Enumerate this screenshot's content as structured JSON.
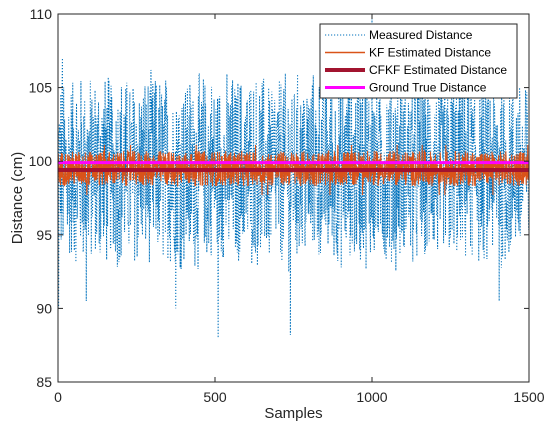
{
  "chart_data": {
    "type": "line",
    "xlabel": "Samples",
    "ylabel": "Distance (cm)",
    "xlim": [
      0,
      1500
    ],
    "ylim": [
      85,
      110
    ],
    "xticks": [
      0,
      500,
      1000,
      1500
    ],
    "yticks": [
      85,
      90,
      95,
      100,
      105,
      110
    ],
    "grid": false,
    "legend_position": "top-right",
    "n_samples": 1500,
    "series": [
      {
        "name": "Measured Distance",
        "color": "#0072BD",
        "style": "dotted",
        "typical_range": [
          94,
          106
        ],
        "extremes": [
          {
            "x": 2,
            "y": 90
          },
          {
            "x": 14,
            "y": 107
          },
          {
            "x": 90,
            "y": 90.5
          },
          {
            "x": 375,
            "y": 90
          },
          {
            "x": 510,
            "y": 88
          },
          {
            "x": 740,
            "y": 88.2
          },
          {
            "x": 1000,
            "y": 110
          },
          {
            "x": 1405,
            "y": 90.5
          }
        ]
      },
      {
        "name": "KF Estimated Distance",
        "color": "#D95319",
        "style": "solid",
        "typical_range": [
          98,
          101
        ]
      },
      {
        "name": "CFKF Estimated Distance",
        "color": "#A2142F",
        "style": "solid",
        "value": 99.4
      },
      {
        "name": "Ground True Distance",
        "color": "#FF00FF",
        "style": "solid",
        "value": 99.9
      }
    ]
  }
}
